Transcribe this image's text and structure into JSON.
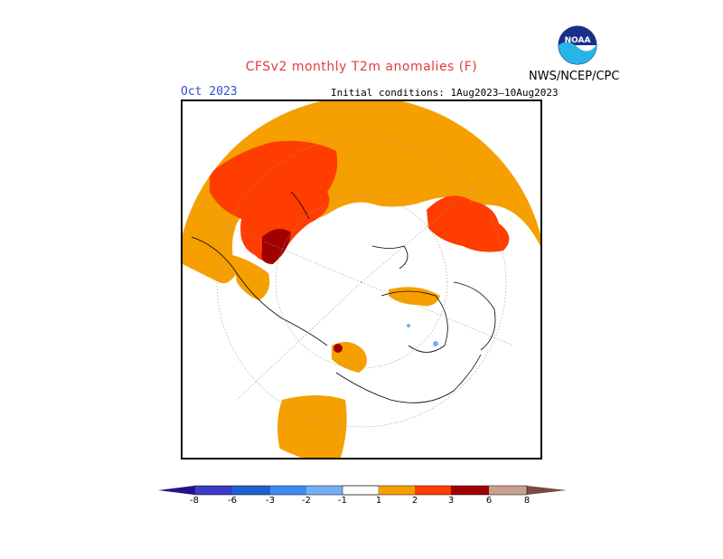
{
  "header": {
    "title": "CFSv2 monthly T2m anomalies (F)",
    "period": "Oct 2023",
    "initial_conditions": "Initial conditions: 1Aug2023–10Aug2023",
    "agency": "NWS/NCEP/CPC",
    "logo_text": "NOAA"
  },
  "colors": {
    "title": "#e03c3c",
    "period": "#3050d0",
    "cat_1_2": "#f5a000",
    "cat_2_3": "#ff3d00",
    "cat_3_6": "#a00000",
    "cat_6_8": "#c8a090",
    "cat_gt8": "#7a4a40",
    "cat_m1_m2": "#74aef5",
    "cat_m2_m3": "#3c8cf0",
    "cat_m3_m6": "#2060d0",
    "cat_m6_m8": "#3c3cc8",
    "cat_lt_m8": "#28108c"
  },
  "colorbar": {
    "labels": [
      "-8",
      "-6",
      "-3",
      "-2",
      "-1",
      "1",
      "2",
      "3",
      "6",
      "8"
    ]
  }
}
